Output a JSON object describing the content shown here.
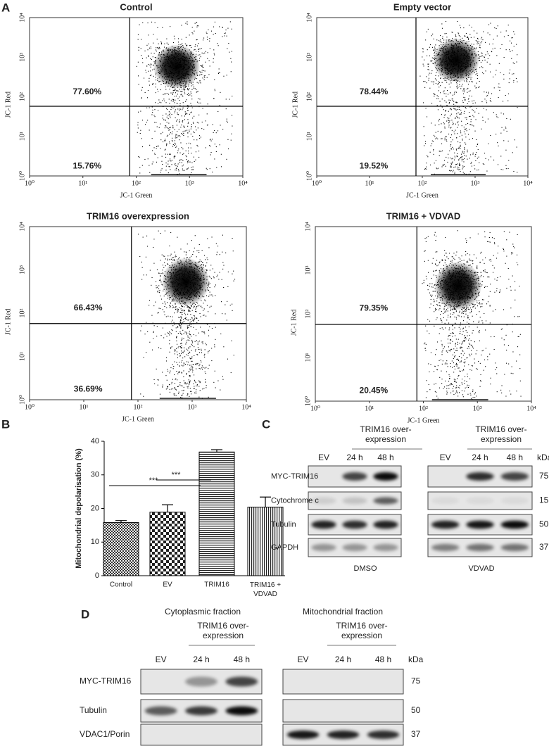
{
  "panel_labels": [
    "A",
    "B",
    "C",
    "D"
  ],
  "flow_axes": {
    "xlabel": "JC-1 Green",
    "ylabel": "JC-1 Red",
    "ticks": [
      "10⁰",
      "10¹",
      "10²",
      "10³",
      "10⁴"
    ]
  },
  "flow_plots": [
    {
      "title": "Control",
      "upper": "77.60%",
      "lower": "15.76%"
    },
    {
      "title": "Empty vector",
      "upper": "78.44%",
      "lower": "19.52%"
    },
    {
      "title": "TRIM16  overexpression",
      "upper": "66.43%",
      "lower": "36.69%"
    },
    {
      "title": "TRIM16 + VDVAD",
      "upper": "79.35%",
      "lower": "20.45%"
    }
  ],
  "chart_data": {
    "type": "bar",
    "ylabel": "Mitochondrial depolarisation (%)",
    "categories": [
      "Control",
      "EV",
      "TRIM16",
      "TRIM16 + VDVAD"
    ],
    "values": [
      15.8,
      18.9,
      36.8,
      20.4
    ],
    "errors": [
      0.6,
      2.2,
      0.7,
      3.0
    ],
    "ylim": [
      0,
      40
    ],
    "yticks": [
      0,
      10,
      20,
      30,
      40
    ],
    "significance": [
      "***",
      "***"
    ]
  },
  "blot_c": {
    "header_line1": "TRIM16 over-",
    "header_line2": "expression",
    "lanes": [
      "EV",
      "24 h",
      "48 h"
    ],
    "kda": "kDa",
    "rows": [
      "MYC-TRIM16",
      "Cytochrome c",
      "Tubulin",
      "GAPDH"
    ],
    "mw": [
      "75",
      "15",
      "50",
      "37"
    ],
    "conditions": [
      "DMSO",
      "VDVAD"
    ]
  },
  "blot_d": {
    "fractions": [
      "Cytoplasmic fraction",
      "Mitochondrial fraction"
    ],
    "header_line1": "TRIM16 over-",
    "header_line2": "expression",
    "lanes": [
      "EV",
      "24 h",
      "48 h"
    ],
    "kda": "kDa",
    "rows": [
      "MYC-TRIM16",
      "Tubulin",
      "VDAC1/Porin"
    ],
    "mw": [
      "75",
      "50",
      "37"
    ]
  }
}
